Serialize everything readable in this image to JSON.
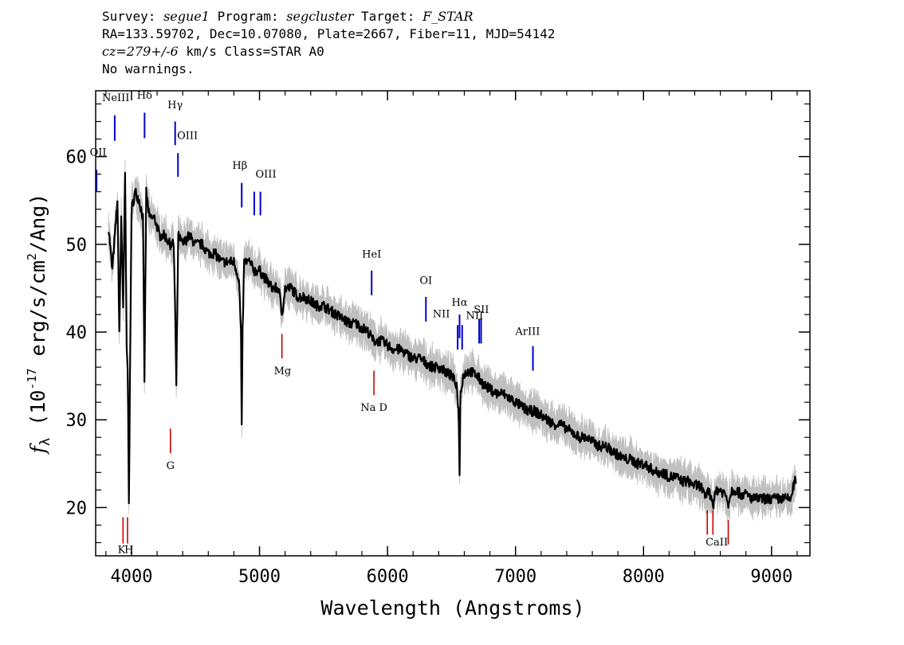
{
  "header": {
    "survey_label": "Survey:",
    "survey": "segue1",
    "program_label": "Program:",
    "program": "segcluster",
    "target_label": "Target:",
    "target": "F_STAR",
    "line2": "RA=133.59702, Dec=10.07080, Plate=2667, Fiber=11, MJD=54142",
    "cz": "cz=279+/-6",
    "cz_rest": " km/s Class=STAR A0",
    "warnings": "No warnings."
  },
  "chart_data": {
    "type": "line",
    "xlabel": "Wavelength (Angstroms)",
    "ylabel_main": "f",
    "ylabel_sub": "λ",
    "ylabel_rest1": " (10",
    "ylabel_exp1": "-17",
    "ylabel_rest2": " erg/s/cm",
    "ylabel_exp2": "2",
    "ylabel_rest3": "/Ang)",
    "xlim": [
      3720,
      9300
    ],
    "ylim": [
      14.5,
      67.5
    ],
    "xticks": [
      4000,
      5000,
      6000,
      7000,
      8000,
      9000
    ],
    "xtick_labels": [
      "4000",
      "5000",
      "6000",
      "7000",
      "8000",
      "9000"
    ],
    "yticks": [
      20,
      30,
      40,
      50,
      60
    ],
    "ytick_labels": [
      "20",
      "30",
      "40",
      "50",
      "60"
    ],
    "grid": false,
    "colors": {
      "flux": "#000000",
      "error": "#c0c0c0",
      "emission": "#0000cc",
      "absorption": "#cc0000"
    },
    "spectrum": {
      "x": [
        3820,
        3850,
        3870,
        3890,
        3905,
        3920,
        3935,
        3950,
        3962,
        3970,
        3980,
        4000,
        4030,
        4060,
        4090,
        4101,
        4115,
        4140,
        4180,
        4220,
        4260,
        4300,
        4330,
        4340,
        4350,
        4365,
        4400,
        4450,
        4500,
        4550,
        4600,
        4650,
        4700,
        4750,
        4800,
        4840,
        4855,
        4861,
        4868,
        4880,
        4920,
        4960,
        5000,
        5050,
        5100,
        5150,
        5175,
        5200,
        5250,
        5300,
        5350,
        5400,
        5450,
        5500,
        5550,
        5600,
        5650,
        5700,
        5750,
        5800,
        5850,
        5890,
        5950,
        6000,
        6050,
        6100,
        6150,
        6200,
        6250,
        6300,
        6350,
        6400,
        6450,
        6500,
        6540,
        6555,
        6563,
        6570,
        6590,
        6620,
        6650,
        6700,
        6750,
        6800,
        6850,
        6900,
        6950,
        7000,
        7050,
        7100,
        7150,
        7200,
        7250,
        7300,
        7350,
        7400,
        7450,
        7500,
        7550,
        7600,
        7650,
        7700,
        7750,
        7800,
        7850,
        7900,
        7950,
        8000,
        8050,
        8100,
        8150,
        8200,
        8250,
        8300,
        8350,
        8400,
        8450,
        8480,
        8500,
        8520,
        8545,
        8570,
        8600,
        8640,
        8662,
        8690,
        8720,
        8760,
        8800,
        8850,
        8900,
        8950,
        9000,
        9050,
        9100,
        9150,
        9180,
        9195
      ],
      "y": [
        52,
        47,
        51,
        55,
        40,
        53,
        43,
        58,
        38,
        36,
        21,
        54,
        56,
        55,
        53,
        34,
        56,
        53,
        53,
        51,
        51,
        50,
        50,
        43,
        34,
        51,
        50,
        51,
        50,
        50,
        49,
        49,
        48,
        48,
        48,
        46,
        40,
        29,
        40,
        48,
        48,
        47,
        47,
        46,
        45,
        45,
        42,
        45,
        45,
        44,
        44,
        43.5,
        43,
        43,
        42.5,
        42,
        41.5,
        41,
        41,
        40.5,
        40,
        39,
        39,
        38.5,
        38,
        38,
        37.5,
        37,
        37,
        36.5,
        36,
        36,
        35.5,
        35,
        34,
        31,
        24,
        33,
        35,
        35.5,
        35.5,
        35,
        34,
        33.5,
        33,
        33,
        32.5,
        32,
        31.5,
        31,
        31,
        30.5,
        30,
        29.5,
        29.5,
        29,
        28.5,
        28,
        28,
        27.5,
        27,
        27,
        26.5,
        26,
        25.5,
        25.5,
        25,
        25,
        24.5,
        24,
        24,
        23.5,
        23.5,
        23,
        23,
        22.5,
        22.5,
        21,
        22,
        21.5,
        20.5,
        22,
        22,
        21.5,
        20.5,
        22,
        22,
        21.5,
        21.5,
        21,
        21,
        21,
        21,
        21,
        21,
        21,
        23,
        23
      ]
    },
    "error_band_halfwidth": 1.2,
    "emission_lines": [
      {
        "label": "NeIII",
        "x": 3869,
        "y1": 61.8,
        "y2": 64.7
      },
      {
        "label": "Hδ",
        "x": 4102,
        "y1": 62.1,
        "y2": 65.0
      },
      {
        "label": "Hγ",
        "x": 4341,
        "y1": 61.3,
        "y2": 64.0
      },
      {
        "label": "OIII",
        "x": 4363,
        "y1": 57.7,
        "y2": 60.4
      },
      {
        "label": "Hβ",
        "x": 4861,
        "y1": 54.2,
        "y2": 57.0
      },
      {
        "label": "OIII",
        "x": 4959,
        "y1": 53.3,
        "y2": 56.0
      },
      {
        "label": "OIII",
        "x": 5007,
        "y1": 53.3,
        "y2": 56.0
      },
      {
        "label": "HeI",
        "x": 5876,
        "y1": 44.2,
        "y2": 47.0
      },
      {
        "label": "OI",
        "x": 6300,
        "y1": 41.2,
        "y2": 44.0
      },
      {
        "label": "NII",
        "x": 6548,
        "y1": 38.0,
        "y2": 40.8
      },
      {
        "label": "Hα",
        "x": 6563,
        "y1": 39.3,
        "y2": 42.0
      },
      {
        "label": "NII",
        "x": 6583,
        "y1": 38.0,
        "y2": 40.8
      },
      {
        "label": "SII",
        "x": 6716,
        "y1": 38.7,
        "y2": 41.5
      },
      {
        "label": "SII",
        "x": 6731,
        "y1": 38.7,
        "y2": 41.5
      },
      {
        "label": "ArIII",
        "x": 7136,
        "y1": 35.6,
        "y2": 38.4
      },
      {
        "label": "OII",
        "x": 3727,
        "y1": 56.0,
        "y2": 58.5
      }
    ],
    "absorption_lines": [
      {
        "label": "K",
        "x": 3934,
        "y1": 15.9,
        "y2": 18.9
      },
      {
        "label": "H",
        "x": 3969,
        "y1": 15.9,
        "y2": 18.9
      },
      {
        "label": "G",
        "x": 4304,
        "y1": 26.2,
        "y2": 29.0
      },
      {
        "label": "Mg",
        "x": 5175,
        "y1": 37.0,
        "y2": 39.8
      },
      {
        "label": "Na D",
        "x": 5894,
        "y1": 32.8,
        "y2": 35.6
      },
      {
        "label": "CaII",
        "x": 8498,
        "y1": 16.9,
        "y2": 19.7
      },
      {
        "label": "CaII",
        "x": 8542,
        "y1": 16.9,
        "y2": 19.7
      },
      {
        "label": "CaII",
        "x": 8662,
        "y1": 15.8,
        "y2": 18.6
      }
    ],
    "line_labels": [
      {
        "text": "NeIII",
        "x": 3877,
        "y": 66.3
      },
      {
        "text": "Hδ",
        "x": 4102,
        "y": 66.6
      },
      {
        "text": "Hγ",
        "x": 4341,
        "y": 65.5
      },
      {
        "text": "OIII",
        "x": 4437,
        "y": 62.0
      },
      {
        "text": "Hβ",
        "x": 4846,
        "y": 58.6
      },
      {
        "text": "OIII",
        "x": 5050,
        "y": 57.6
      },
      {
        "text": "HeI",
        "x": 5876,
        "y": 48.5
      },
      {
        "text": "OI",
        "x": 6300,
        "y": 45.5
      },
      {
        "text": "NII",
        "x": 6420,
        "y": 41.7
      },
      {
        "text": "Hα",
        "x": 6563,
        "y": 43.0
      },
      {
        "text": "NII",
        "x": 6680,
        "y": 41.5
      },
      {
        "text": "SII",
        "x": 6733,
        "y": 42.2
      },
      {
        "text": "ArIII",
        "x": 7095,
        "y": 39.7
      },
      {
        "text": "OII",
        "x": 3739,
        "y": 60.1
      },
      {
        "text": "K",
        "x": 3922,
        "y": 14.8
      },
      {
        "text": "H",
        "x": 3980,
        "y": 14.8
      },
      {
        "text": "G",
        "x": 4304,
        "y": 24.4
      },
      {
        "text": "Mg",
        "x": 5180,
        "y": 35.2
      },
      {
        "text": "Na D",
        "x": 5894,
        "y": 31.0
      },
      {
        "text": "CaII",
        "x": 8572,
        "y": 15.7
      }
    ]
  }
}
